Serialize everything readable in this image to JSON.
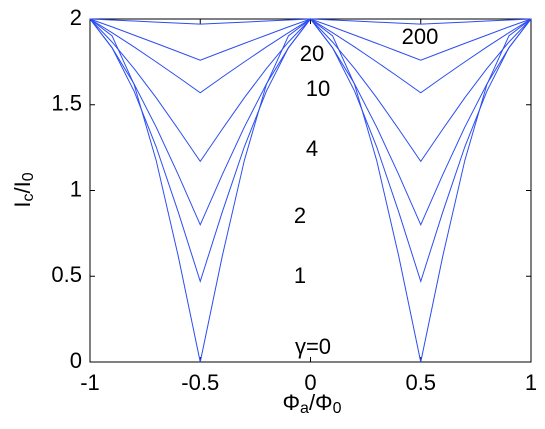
{
  "chart_data": {
    "type": "line",
    "xlabel": [
      "Φ",
      "a",
      "/Φ",
      "0"
    ],
    "ylabel": [
      "I",
      "c",
      "/I",
      "0"
    ],
    "x": [
      -1,
      -0.9,
      -0.8,
      -0.7,
      -0.6,
      -0.5,
      -0.4,
      -0.3,
      -0.2,
      -0.1,
      0,
      0.1,
      0.2,
      0.3,
      0.4,
      0.5,
      0.6,
      0.7,
      0.8,
      0.9,
      1
    ],
    "xlim": [
      -1,
      1
    ],
    "xticks": [
      -1,
      -0.5,
      0,
      0.5,
      1
    ],
    "ylim": [
      0,
      2
    ],
    "yticks": [
      0,
      0.5,
      1,
      1.5,
      2
    ],
    "grid": false,
    "series": [
      {
        "name": "γ=0",
        "color": "#2b4df2",
        "values": [
          2,
          1.902,
          1.618,
          1.176,
          0.618,
          0,
          0.618,
          1.176,
          1.618,
          1.902,
          2,
          1.902,
          1.618,
          1.176,
          0.618,
          0,
          0.618,
          1.176,
          1.618,
          1.902,
          2
        ]
      },
      {
        "name": "1",
        "color": "#2b4df2",
        "values": [
          2,
          1.833,
          1.579,
          1.255,
          0.875,
          0.47,
          0.875,
          1.255,
          1.579,
          1.833,
          2,
          1.833,
          1.579,
          1.255,
          0.875,
          0.47,
          0.875,
          1.255,
          1.579,
          1.833,
          2
        ]
      },
      {
        "name": "2",
        "color": "#2b4df2",
        "values": [
          2,
          1.832,
          1.621,
          1.37,
          1.093,
          0.8,
          1.093,
          1.37,
          1.621,
          1.832,
          2,
          1.832,
          1.621,
          1.37,
          1.093,
          0.8,
          1.093,
          1.37,
          1.621,
          1.832,
          2
        ]
      },
      {
        "name": "4",
        "color": "#2b4df2",
        "values": [
          2,
          1.866,
          1.711,
          1.541,
          1.358,
          1.17,
          1.358,
          1.541,
          1.711,
          1.866,
          2,
          1.866,
          1.711,
          1.541,
          1.358,
          1.17,
          1.358,
          1.541,
          1.711,
          1.866,
          2
        ]
      },
      {
        "name": "10",
        "color": "#2b4df2",
        "values": [
          2,
          1.92,
          1.837,
          1.75,
          1.661,
          1.57,
          1.661,
          1.75,
          1.837,
          1.92,
          2,
          1.92,
          1.837,
          1.75,
          1.661,
          1.57,
          1.661,
          1.75,
          1.837,
          1.92,
          2
        ]
      },
      {
        "name": "20",
        "color": "#2b4df2",
        "values": [
          2,
          1.954,
          1.906,
          1.858,
          1.809,
          1.76,
          1.809,
          1.858,
          1.906,
          1.954,
          2,
          1.954,
          1.906,
          1.858,
          1.809,
          1.76,
          1.809,
          1.858,
          1.906,
          1.954,
          2
        ]
      },
      {
        "name": "200",
        "color": "#2b4df2",
        "values": [
          2,
          1.994,
          1.988,
          1.982,
          1.976,
          1.97,
          1.976,
          1.982,
          1.988,
          1.994,
          2,
          1.994,
          1.988,
          1.982,
          1.976,
          1.97,
          1.976,
          1.982,
          1.988,
          1.994,
          2
        ]
      }
    ]
  }
}
